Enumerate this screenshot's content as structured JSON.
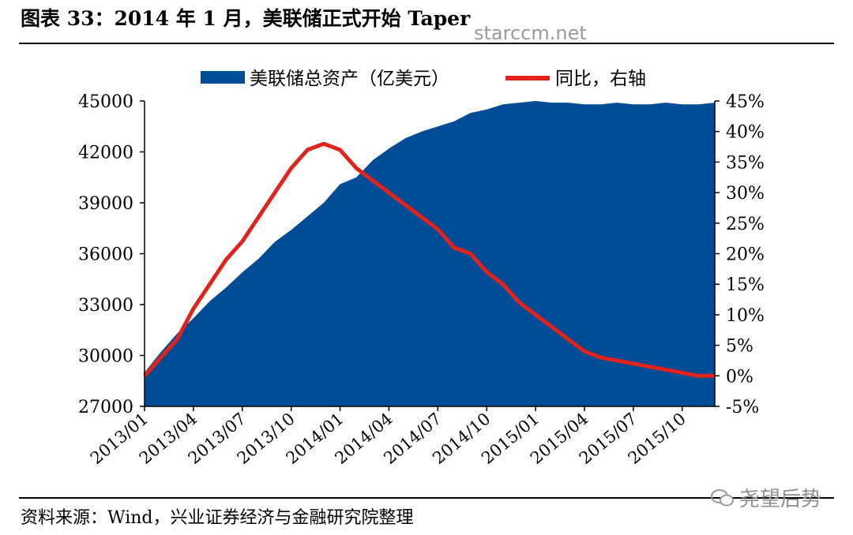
{
  "title": "图表 33：2014 年 1 月，美联储正式开始 Taper",
  "watermark": "starccm.net",
  "source": "资料来源：Wind，兴业证券经济与金融研究院整理",
  "brand": "尧望后势",
  "colors": {
    "area": "#004C97",
    "line": "#E0241C"
  },
  "chart_data": {
    "type": "area",
    "x_start": "2013/01",
    "x_end": "2015/12",
    "xticks": [
      "2013/01",
      "2013/04",
      "2013/07",
      "2013/10",
      "2014/01",
      "2014/04",
      "2014/07",
      "2014/10",
      "2015/01",
      "2015/04",
      "2015/07",
      "2015/10"
    ],
    "legend": [
      {
        "label": "美联储总资产（亿美元）",
        "kind": "area"
      },
      {
        "label": "同比，右轴",
        "kind": "line"
      }
    ],
    "left_axis": {
      "ylim": [
        27000,
        45000
      ],
      "ticks": [
        "45000",
        "42000",
        "39000",
        "36000",
        "33000",
        "30000",
        "27000"
      ]
    },
    "right_axis": {
      "ylim": [
        -5,
        45
      ],
      "ticks": [
        "45%",
        "40%",
        "35%",
        "30%",
        "25%",
        "20%",
        "15%",
        "10%",
        "5%",
        "0%",
        "-5%"
      ]
    },
    "series": [
      {
        "name": "美联储总资产（亿美元）",
        "axis": "left",
        "x": [
          "2013/01",
          "2013/02",
          "2013/03",
          "2013/04",
          "2013/05",
          "2013/06",
          "2013/07",
          "2013/08",
          "2013/09",
          "2013/10",
          "2013/11",
          "2013/12",
          "2014/01",
          "2014/02",
          "2014/03",
          "2014/04",
          "2014/05",
          "2014/06",
          "2014/07",
          "2014/08",
          "2014/09",
          "2014/10",
          "2014/11",
          "2014/12",
          "2015/01",
          "2015/02",
          "2015/03",
          "2015/04",
          "2015/05",
          "2015/06",
          "2015/07",
          "2015/08",
          "2015/09",
          "2015/10",
          "2015/11",
          "2015/12"
        ],
        "values": [
          29000,
          30200,
          31300,
          32200,
          33200,
          34000,
          34900,
          35700,
          36700,
          37400,
          38200,
          39000,
          40100,
          40500,
          41500,
          42200,
          42800,
          43200,
          43500,
          43800,
          44300,
          44500,
          44800,
          44900,
          45000,
          44900,
          44900,
          44800,
          44800,
          44900,
          44800,
          44800,
          44900,
          44800,
          44800,
          44900
        ]
      },
      {
        "name": "同比，右轴",
        "axis": "right",
        "x": [
          "2013/01",
          "2013/02",
          "2013/03",
          "2013/04",
          "2013/05",
          "2013/06",
          "2013/07",
          "2013/08",
          "2013/09",
          "2013/10",
          "2013/11",
          "2013/12",
          "2014/01",
          "2014/02",
          "2014/03",
          "2014/04",
          "2014/05",
          "2014/06",
          "2014/07",
          "2014/08",
          "2014/09",
          "2014/10",
          "2014/11",
          "2014/12",
          "2015/01",
          "2015/02",
          "2015/03",
          "2015/04",
          "2015/05",
          "2015/06",
          "2015/07",
          "2015/08",
          "2015/09",
          "2015/10",
          "2015/11",
          "2015/12"
        ],
        "values": [
          0,
          3,
          6,
          11,
          15,
          19,
          22,
          26,
          30,
          34,
          37,
          38,
          37,
          34,
          32,
          30,
          28,
          26,
          24,
          21,
          20,
          17,
          15,
          12,
          10,
          8,
          6,
          4,
          3,
          2.5,
          2,
          1.5,
          1,
          0.5,
          0,
          0
        ]
      }
    ]
  }
}
